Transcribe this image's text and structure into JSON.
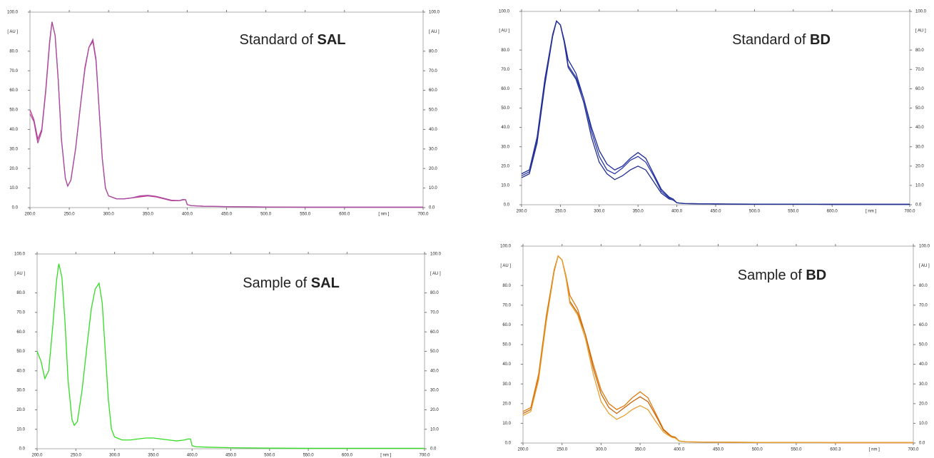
{
  "chart_data": [
    {
      "type": "line",
      "title": "Standard of SAL",
      "xlabel": "[ nm ]",
      "ylabel": "[ AU ]",
      "xlim": [
        200,
        700
      ],
      "ylim": [
        0,
        100
      ],
      "xticks": [
        {
          "value": 200,
          "label": "200.0"
        },
        {
          "value": 250,
          "label": "250.0"
        },
        {
          "value": 300,
          "label": "300.0"
        },
        {
          "value": 350,
          "label": "350.0"
        },
        {
          "value": 400,
          "label": "400.0"
        },
        {
          "value": 450,
          "label": "450.0"
        },
        {
          "value": 500,
          "label": "500.0"
        },
        {
          "value": 550,
          "label": "550.0"
        },
        {
          "value": 600,
          "label": "600.0"
        },
        {
          "value": 700,
          "label": "700.0"
        }
      ],
      "yticks": [
        {
          "value": 0,
          "label": "0.0"
        },
        {
          "value": 10,
          "label": "10.0"
        },
        {
          "value": 20,
          "label": "20.0"
        },
        {
          "value": 30,
          "label": "30.0"
        },
        {
          "value": 40,
          "label": "40.0"
        },
        {
          "value": 50,
          "label": "50.0"
        },
        {
          "value": 60,
          "label": "60.0"
        },
        {
          "value": 70,
          "label": "70.0"
        },
        {
          "value": 80,
          "label": "80.0"
        },
        {
          "value": 100,
          "label": "100.0"
        }
      ],
      "x": [
        200,
        205,
        210,
        215,
        220,
        225,
        228,
        232,
        236,
        240,
        245,
        248,
        252,
        258,
        265,
        270,
        275,
        280,
        284,
        288,
        292,
        296,
        300,
        310,
        320,
        330,
        340,
        350,
        360,
        370,
        380,
        390,
        395,
        398,
        400,
        405,
        420,
        450,
        500,
        550,
        600,
        650,
        700
      ],
      "series": [
        {
          "color": "#c0398f",
          "values": [
            50,
            45,
            35,
            40,
            60,
            85,
            95,
            88,
            65,
            35,
            15,
            11,
            14,
            30,
            55,
            72,
            82,
            85,
            75,
            50,
            25,
            10,
            6,
            4.5,
            4.5,
            5,
            5.5,
            6,
            5.5,
            4.5,
            3.5,
            3.5,
            4,
            4,
            1.5,
            1,
            0.7,
            0.5,
            0.3,
            0.2,
            0.2,
            0.2,
            0.2
          ]
        },
        {
          "color": "#a94da0",
          "values": [
            48,
            44,
            33,
            39,
            59,
            84,
            95,
            88,
            65,
            35,
            15,
            11,
            14,
            30,
            55,
            71,
            82,
            86,
            76,
            50,
            25,
            10,
            6,
            4.5,
            4.5,
            5,
            6,
            6.3,
            5.8,
            4.8,
            3.8,
            3.6,
            4.2,
            4,
            1.5,
            1,
            0.7,
            0.5,
            0.3,
            0.2,
            0.2,
            0.2,
            0.2
          ]
        }
      ]
    },
    {
      "type": "line",
      "title": "Standard of BD",
      "xlabel": "[ nm ]",
      "ylabel": "[ AU ]",
      "xlim": [
        200,
        700
      ],
      "ylim": [
        0,
        100
      ],
      "xticks": [
        {
          "value": 200,
          "label": "200.0"
        },
        {
          "value": 250,
          "label": "250.0"
        },
        {
          "value": 300,
          "label": "300.0"
        },
        {
          "value": 350,
          "label": "350.0"
        },
        {
          "value": 400,
          "label": "400.0"
        },
        {
          "value": 450,
          "label": "450.0"
        },
        {
          "value": 500,
          "label": "500.0"
        },
        {
          "value": 550,
          "label": "550.0"
        },
        {
          "value": 600,
          "label": "600.0"
        },
        {
          "value": 700,
          "label": "700.0"
        }
      ],
      "yticks": [
        {
          "value": 0,
          "label": "0.0"
        },
        {
          "value": 10,
          "label": "10.0"
        },
        {
          "value": 20,
          "label": "20.0"
        },
        {
          "value": 30,
          "label": "30.0"
        },
        {
          "value": 40,
          "label": "40.0"
        },
        {
          "value": 50,
          "label": "50.0"
        },
        {
          "value": 60,
          "label": "60.0"
        },
        {
          "value": 70,
          "label": "70.0"
        },
        {
          "value": 80,
          "label": "80.0"
        },
        {
          "value": 100,
          "label": "100.0"
        }
      ],
      "x": [
        200,
        210,
        220,
        230,
        240,
        245,
        250,
        255,
        260,
        270,
        280,
        290,
        300,
        310,
        320,
        330,
        340,
        350,
        360,
        370,
        380,
        390,
        395,
        400,
        410,
        450,
        500,
        600,
        700
      ],
      "series": [
        {
          "color": "#1b2a9a",
          "values": [
            16,
            18,
            35,
            65,
            88,
            95,
            93,
            85,
            75,
            68,
            55,
            40,
            28,
            21,
            18,
            20,
            24,
            27,
            24,
            16,
            8,
            4,
            3,
            1,
            0.6,
            0.4,
            0.3,
            0.2,
            0.2
          ]
        },
        {
          "color": "#2b3aa8",
          "values": [
            15,
            17,
            33,
            63,
            88,
            95,
            93,
            84,
            72,
            66,
            55,
            38,
            25,
            18,
            16,
            19,
            23,
            25,
            22,
            15,
            7,
            3.5,
            3,
            1,
            0.6,
            0.4,
            0.3,
            0.2,
            0.2
          ]
        },
        {
          "color": "#23308f",
          "values": [
            14,
            16,
            32,
            62,
            87,
            95,
            93,
            84,
            71,
            65,
            53,
            35,
            22,
            16,
            13,
            15,
            18,
            20,
            18,
            12,
            6,
            3,
            2.5,
            1,
            0.6,
            0.4,
            0.3,
            0.2,
            0.2
          ]
        }
      ]
    },
    {
      "type": "line",
      "title": "Sample of SAL",
      "xlabel": "[ nm ]",
      "ylabel": "[ AU ]",
      "xlim": [
        200,
        700
      ],
      "ylim": [
        0,
        100
      ],
      "xticks": [
        {
          "value": 200,
          "label": "200.0"
        },
        {
          "value": 250,
          "label": "250.0"
        },
        {
          "value": 300,
          "label": "300.0"
        },
        {
          "value": 350,
          "label": "350.0"
        },
        {
          "value": 400,
          "label": "400.0"
        },
        {
          "value": 450,
          "label": "450.0"
        },
        {
          "value": 500,
          "label": "500.0"
        },
        {
          "value": 550,
          "label": "550.0"
        },
        {
          "value": 600,
          "label": "600.0"
        },
        {
          "value": 700,
          "label": "700.0"
        }
      ],
      "yticks": [
        {
          "value": 0,
          "label": "0.0"
        },
        {
          "value": 10,
          "label": "10.0"
        },
        {
          "value": 20,
          "label": "20.0"
        },
        {
          "value": 30,
          "label": "30.0"
        },
        {
          "value": 40,
          "label": "40.0"
        },
        {
          "value": 50,
          "label": "50.0"
        },
        {
          "value": 60,
          "label": "60.0"
        },
        {
          "value": 70,
          "label": "70.0"
        },
        {
          "value": 80,
          "label": "80.0"
        },
        {
          "value": 100,
          "label": "100.0"
        }
      ],
      "x": [
        200,
        205,
        210,
        215,
        220,
        225,
        228,
        232,
        236,
        240,
        245,
        248,
        252,
        258,
        265,
        270,
        275,
        280,
        284,
        288,
        292,
        296,
        300,
        310,
        320,
        330,
        340,
        350,
        360,
        370,
        380,
        390,
        395,
        398,
        400,
        405,
        420,
        450,
        500,
        550,
        600,
        650,
        700
      ],
      "series": [
        {
          "color": "#33dd22",
          "values": [
            50,
            45,
            36,
            40,
            62,
            86,
            95,
            88,
            65,
            35,
            15,
            12,
            14,
            30,
            55,
            72,
            82,
            85,
            75,
            50,
            25,
            10,
            6,
            4.5,
            4.5,
            5,
            5.5,
            5.5,
            5,
            4.5,
            4,
            4.5,
            5,
            5,
            1.5,
            1,
            0.8,
            0.5,
            0.3,
            0.2,
            0.2,
            0.2,
            0.2
          ]
        }
      ]
    },
    {
      "type": "line",
      "title": "Sample of BD",
      "xlabel": "[ nm ]",
      "ylabel": "[ AU ]",
      "xlim": [
        200,
        700
      ],
      "ylim": [
        0,
        100
      ],
      "xticks": [
        {
          "value": 200,
          "label": "200.0"
        },
        {
          "value": 250,
          "label": "250.0"
        },
        {
          "value": 300,
          "label": "300.0"
        },
        {
          "value": 350,
          "label": "350.0"
        },
        {
          "value": 400,
          "label": "400.0"
        },
        {
          "value": 450,
          "label": "450.0"
        },
        {
          "value": 500,
          "label": "500.0"
        },
        {
          "value": 550,
          "label": "550.0"
        },
        {
          "value": 600.3,
          "label": "600.3"
        },
        {
          "value": 700,
          "label": "700.0"
        }
      ],
      "yticks": [
        {
          "value": 0,
          "label": "0.0"
        },
        {
          "value": 10,
          "label": "10.0"
        },
        {
          "value": 20,
          "label": "20.0"
        },
        {
          "value": 30,
          "label": "30.0"
        },
        {
          "value": 40,
          "label": "40.0"
        },
        {
          "value": 50,
          "label": "50.0"
        },
        {
          "value": 60,
          "label": "60.0"
        },
        {
          "value": 70,
          "label": "70.0"
        },
        {
          "value": 80,
          "label": "80.0"
        },
        {
          "value": 100,
          "label": "100.0"
        }
      ],
      "x": [
        200,
        210,
        220,
        230,
        240,
        245,
        250,
        255,
        260,
        270,
        280,
        290,
        300,
        310,
        320,
        330,
        340,
        350,
        360,
        370,
        380,
        390,
        395,
        400,
        410,
        450,
        500,
        600,
        700
      ],
      "series": [
        {
          "color": "#e07b10",
          "values": [
            16,
            18,
            35,
            65,
            88,
            95,
            93,
            85,
            75,
            68,
            55,
            40,
            27,
            20,
            17,
            19,
            23,
            26,
            23,
            15,
            7,
            3.5,
            3,
            1,
            0.6,
            0.4,
            0.3,
            0.2,
            0.2
          ]
        },
        {
          "color": "#c8660c",
          "values": [
            15,
            17,
            33,
            63,
            88,
            95,
            93,
            84,
            72,
            66,
            55,
            38,
            25,
            18,
            15,
            18,
            21,
            23.5,
            21,
            14,
            6.5,
            3.3,
            2.8,
            1,
            0.6,
            0.4,
            0.3,
            0.2,
            0.2
          ]
        },
        {
          "color": "#e8a030",
          "values": [
            14,
            16,
            32,
            62,
            87,
            95,
            93,
            84,
            71,
            65,
            53,
            35,
            21,
            15,
            12,
            14,
            17,
            19,
            17,
            11,
            5.5,
            3,
            2.5,
            1,
            0.6,
            0.4,
            0.3,
            0.2,
            0.2
          ]
        }
      ]
    }
  ]
}
